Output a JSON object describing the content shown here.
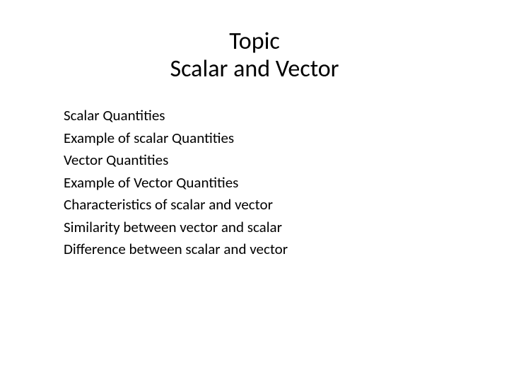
{
  "slide": {
    "title_line1": "Topic",
    "title_line2": "Scalar and Vector",
    "items": [
      "Scalar Quantities",
      "Example of scalar Quantities",
      "Vector Quantities",
      "Example of Vector Quantities",
      "Characteristics of scalar and vector",
      "Similarity between vector and scalar",
      "Difference between scalar and vector"
    ]
  },
  "colors": {
    "background": "#ffffff",
    "text": "#000000"
  },
  "fonts": {
    "title_size_pt": 34,
    "body_size_pt": 21,
    "title_family": "Gill Sans MT",
    "body_family": "Calibri"
  }
}
